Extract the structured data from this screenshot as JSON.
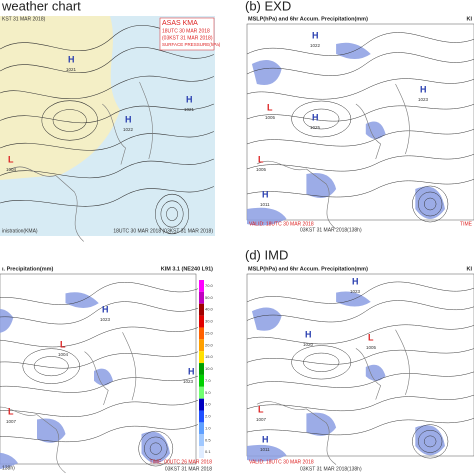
{
  "panels": [
    {
      "label": "weather chart",
      "top_note": "KST 31 MAR 2018)",
      "box": [
        "ASAS KMA",
        "18UTC 30 MAR 2018",
        "(03KST 31 MAR 2018)",
        "SURFACE PRESSURE(hPa)"
      ],
      "footer_left": "inistration(KMA)",
      "footer_right": "18UTC 30 MAR 2018 (03KST 31 MAR 2018)",
      "centers": [
        {
          "type": "H",
          "value": "1021"
        },
        {
          "type": "H",
          "value": "1022"
        },
        {
          "type": "L",
          "value": "1004"
        },
        {
          "type": "H",
          "value": "1021"
        }
      ]
    },
    {
      "label": "(b) EXD",
      "header": "MSLP(hPa) and 6hr Accum. Precipitation(mm)",
      "model": "KI",
      "valid": "VALID: 18UTC 30 MAR 2018",
      "init": "03KST 31 MAR 2018(138h)",
      "time": "TIME",
      "centers": [
        {
          "type": "H",
          "value": "1022"
        },
        {
          "type": "L",
          "value": "1005"
        },
        {
          "type": "H",
          "value": "1025"
        },
        {
          "type": "L",
          "value": "1005"
        },
        {
          "type": "H",
          "value": "1011"
        },
        {
          "type": "H",
          "value": "1023"
        }
      ]
    },
    {
      "header": "ı. Precipitation(mm)",
      "model": "KIM 3.1 (NE240 L91)",
      "time": "TIME: 00UTC 26 MAR 2018",
      "init": "03KST 31 MAR 2018",
      "left_note": "138h)",
      "colorbar": [
        "70.0",
        "50.0",
        "40.0",
        "30.0",
        "25.0",
        "20.0",
        "15.0",
        "10.0",
        "7.0",
        "5.0",
        "3.0",
        "2.0",
        "1.0",
        "0.5",
        "0.1"
      ],
      "centers": [
        {
          "type": "H",
          "value": "1023"
        },
        {
          "type": "L",
          "value": "1004"
        },
        {
          "type": "H",
          "value": "1023"
        },
        {
          "type": "L",
          "value": "1007"
        }
      ]
    },
    {
      "label": "(d) IMD",
      "header": "MSLP(hPa) and 6hr Accum. Precipitation(mm)",
      "model": "KI",
      "valid": "VALID: 18UTC 30 MAR 2018",
      "init": "03KST 31 MAR 2018(138h)",
      "centers": [
        {
          "type": "H",
          "value": "1023"
        },
        {
          "type": "L",
          "value": "1005"
        },
        {
          "type": "H",
          "value": "1020"
        },
        {
          "type": "L",
          "value": "1007"
        },
        {
          "type": "H",
          "value": "1011"
        }
      ]
    }
  ]
}
